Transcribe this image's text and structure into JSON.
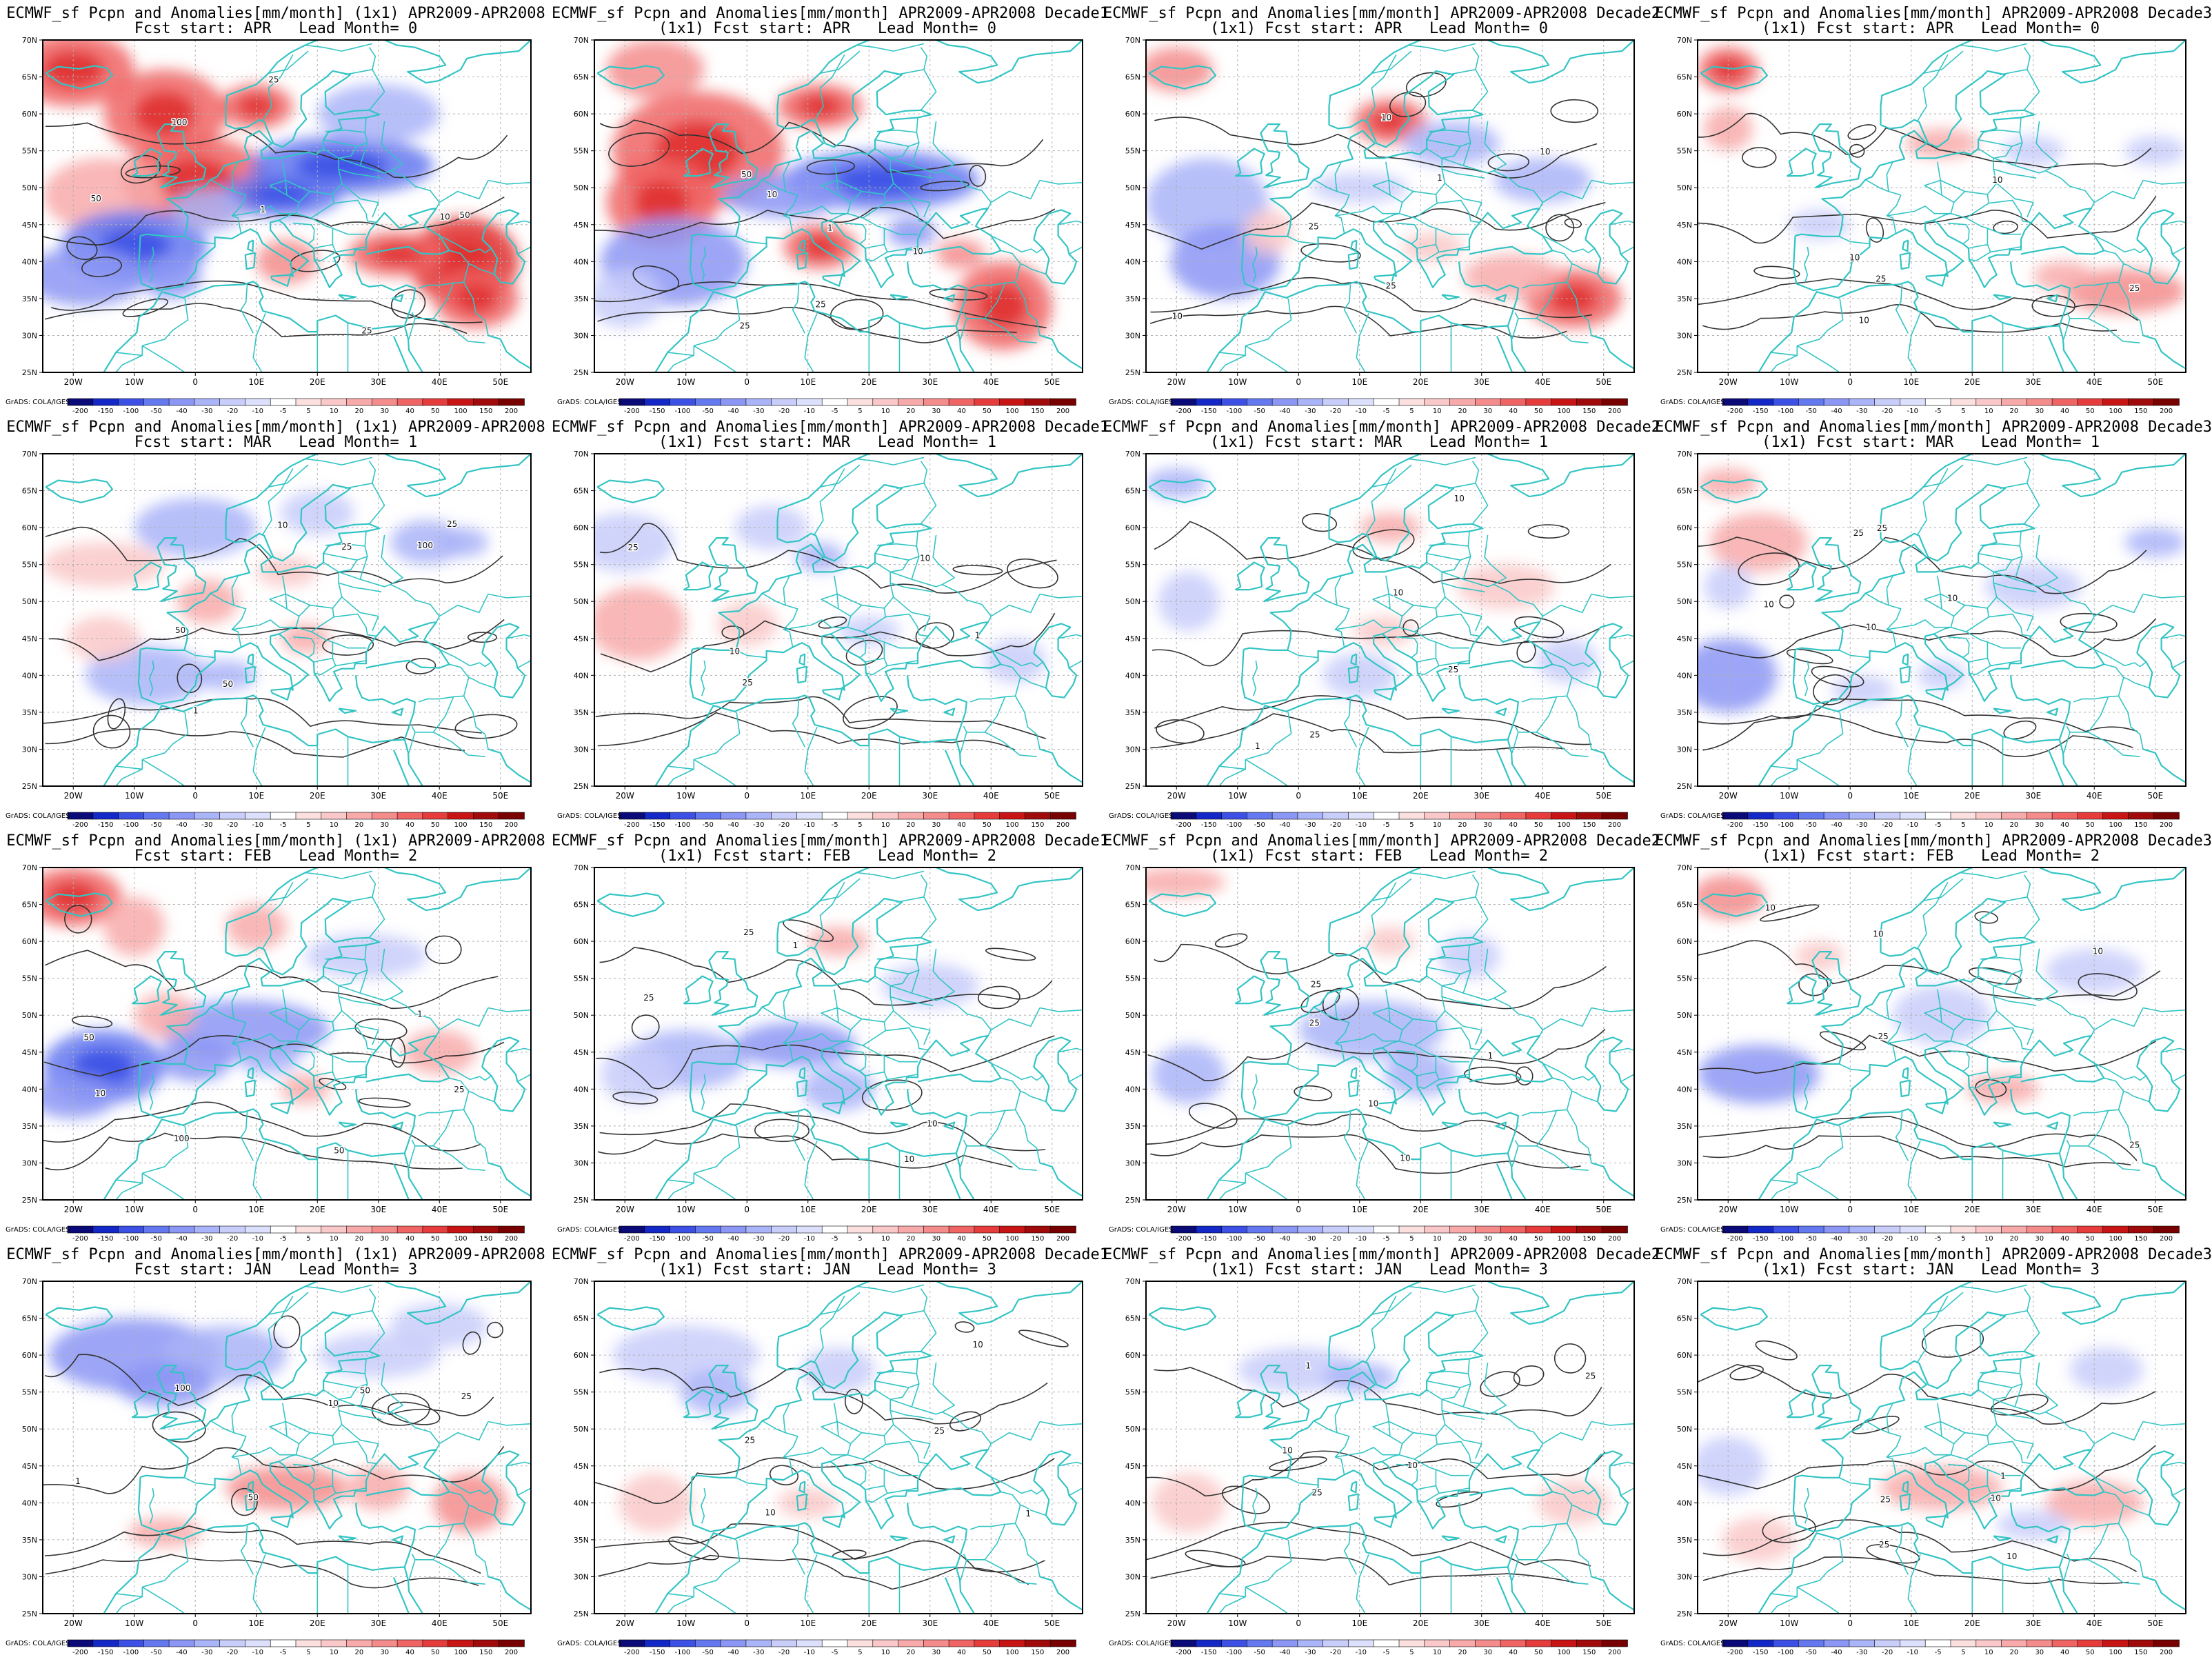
{
  "axes": {
    "lon_ticks": [
      "20W",
      "10W",
      "0",
      "10E",
      "20E",
      "30E",
      "40E",
      "50E"
    ],
    "lat_ticks": [
      "70N",
      "65N",
      "60N",
      "55N",
      "50N",
      "45N",
      "40N",
      "35N",
      "30N",
      "25N"
    ]
  },
  "colorbar": {
    "labels": [
      "-200",
      "-150",
      "-100",
      "-50",
      "-40",
      "-30",
      "-20",
      "-10",
      "-5",
      "5",
      "10",
      "20",
      "30",
      "40",
      "50",
      "100",
      "150",
      "200"
    ],
    "colors": [
      "#0a0a78",
      "#1428c8",
      "#3c50e6",
      "#6478f0",
      "#8c96f5",
      "#aab4f8",
      "#c8cdfa",
      "#dce0fc",
      "#ffffff",
      "#fce0e0",
      "#fac8c8",
      "#f8aaaa",
      "#f58c8c",
      "#f06464",
      "#e63c3c",
      "#c81414",
      "#a00a0a",
      "#780000"
    ],
    "credit": "GrADS: COLA/IGES"
  },
  "colors": {
    "coast": "#33c4c4",
    "contour": "#333333",
    "grid": "#b0b0b0"
  },
  "rows": [
    {
      "start": "APR",
      "lead": "0",
      "panels": [
        {
          "line1": "ECMWF_sf Pcpn and Anomalies[mm/month] (1x1) APR2009-APR2008",
          "line2": "Fcst start: APR   Lead Month= 0",
          "intensity": 1.0,
          "labels": [
            "100",
            "50",
            "25",
            "10",
            "50",
            "25",
            "1"
          ]
        },
        {
          "line1": "ECMWF_sf Pcpn and Anomalies[mm/month] APR2009-APR2008 Decade1",
          "line2": "(1x1) Fcst start: APR   Lead Month= 0",
          "intensity": 0.8,
          "labels": [
            "50",
            "25",
            "10",
            "10",
            "25",
            "1"
          ]
        },
        {
          "line1": "ECMWF_sf Pcpn and Anomalies[mm/month] APR2009-APR2008 Decade2",
          "line2": "(1x1) Fcst start: APR   Lead Month= 0",
          "intensity": 0.55,
          "labels": [
            "25",
            "10",
            "10",
            "25",
            "1",
            "10"
          ]
        },
        {
          "line1": "ECMWF_sf Pcpn and Anomalies[mm/month] APR2009-APR2008 Decade3",
          "line2": "(1x1) Fcst start: APR   Lead Month= 0",
          "intensity": 0.45,
          "labels": [
            "25",
            "10",
            "10",
            "10",
            "25"
          ]
        }
      ]
    },
    {
      "start": "MAR",
      "lead": "1",
      "panels": [
        {
          "line1": "ECMWF_sf Pcpn and Anomalies[mm/month] (1x1) APR2009-APR2008",
          "line2": "Fcst start: MAR   Lead Month= 1",
          "intensity": 0.45,
          "labels": [
            "50",
            "100",
            "50",
            "25",
            "10",
            "25",
            "1"
          ]
        },
        {
          "line1": "ECMWF_sf Pcpn and Anomalies[mm/month] APR2009-APR2008 Decade1",
          "line2": "(1x1) Fcst start: MAR   Lead Month= 1",
          "intensity": 0.35,
          "labels": [
            "25",
            "10",
            "25",
            "10",
            "1"
          ]
        },
        {
          "line1": "ECMWF_sf Pcpn and Anomalies[mm/month] APR2009-APR2008 Decade2",
          "line2": "(1x1) Fcst start: MAR   Lead Month= 1",
          "intensity": 0.35,
          "labels": [
            "25",
            "10",
            "25",
            "10",
            "1"
          ]
        },
        {
          "line1": "ECMWF_sf Pcpn and Anomalies[mm/month] APR2009-APR2008 Decade3",
          "line2": "(1x1) Fcst start: MAR   Lead Month= 1",
          "intensity": 0.4,
          "labels": [
            "25",
            "10",
            "25",
            "10",
            "10"
          ]
        }
      ]
    },
    {
      "start": "FEB",
      "lead": "2",
      "panels": [
        {
          "line1": "ECMWF_sf Pcpn and Anomalies[mm/month] (1x1) APR2009-APR2008",
          "line2": "Fcst start: FEB   Lead Month= 2",
          "intensity": 0.75,
          "labels": [
            "100",
            "50",
            "50",
            "25",
            "10",
            "1"
          ]
        },
        {
          "line1": "ECMWF_sf Pcpn and Anomalies[mm/month] APR2009-APR2008 Decade1",
          "line2": "(1x1) Fcst start: FEB   Lead Month= 2",
          "intensity": 0.45,
          "labels": [
            "25",
            "25",
            "10",
            "10",
            "1"
          ]
        },
        {
          "line1": "ECMWF_sf Pcpn and Anomalies[mm/month] APR2009-APR2008 Decade2",
          "line2": "(1x1) Fcst start: FEB   Lead Month= 2",
          "intensity": 0.5,
          "labels": [
            "25",
            "10",
            "25",
            "10",
            "1"
          ]
        },
        {
          "line1": "ECMWF_sf Pcpn and Anomalies[mm/month] APR2009-APR2008 Decade3",
          "line2": "(1x1) Fcst start: FEB   Lead Month= 2",
          "intensity": 0.45,
          "labels": [
            "25",
            "10",
            "25",
            "10",
            "10"
          ]
        }
      ]
    },
    {
      "start": "JAN",
      "lead": "3",
      "panels": [
        {
          "line1": "ECMWF_sf Pcpn and Anomalies[mm/month] (1x1) APR2009-APR2008",
          "line2": "Fcst start: JAN   Lead Month= 3",
          "intensity": 0.65,
          "labels": [
            "100",
            "50",
            "50",
            "25",
            "10",
            "1"
          ]
        },
        {
          "line1": "ECMWF_sf Pcpn and Anomalies[mm/month] APR2009-APR2008 Decade1",
          "line2": "(1x1) Fcst start: JAN   Lead Month= 3",
          "intensity": 0.35,
          "labels": [
            "25",
            "10",
            "10",
            "25",
            "1"
          ]
        },
        {
          "line1": "ECMWF_sf Pcpn and Anomalies[mm/month] APR2009-APR2008 Decade2",
          "line2": "(1x1) Fcst start: JAN   Lead Month= 3",
          "intensity": 0.3,
          "labels": [
            "25",
            "10",
            "25",
            "10",
            "1"
          ]
        },
        {
          "line1": "ECMWF_sf Pcpn and Anomalies[mm/month] APR2009-APR2008 Decade3",
          "line2": "(1x1) Fcst start: JAN   Lead Month= 3",
          "intensity": 0.4,
          "labels": [
            "25",
            "10",
            "10",
            "25",
            "1"
          ]
        }
      ]
    }
  ]
}
